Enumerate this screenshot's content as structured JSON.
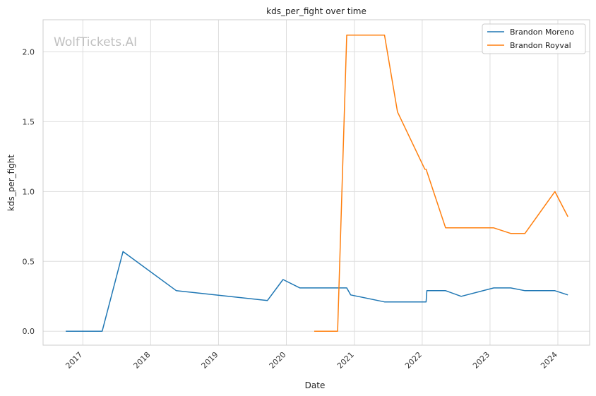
{
  "chart_data": {
    "type": "line",
    "title": "kds_per_fight over time",
    "xlabel": "Date",
    "ylabel": "kds_per_fight",
    "watermark": "WolfTickets.AI",
    "x_ticks": [
      "2017",
      "2018",
      "2019",
      "2020",
      "2021",
      "2022",
      "2023",
      "2024"
    ],
    "y_ticks": [
      "0.0",
      "0.5",
      "1.0",
      "1.5",
      "2.0"
    ],
    "xlim": [
      "2016-06-01",
      "2024-06-20"
    ],
    "ylim": [
      -0.1,
      2.23
    ],
    "grid": true,
    "legend_position": "top-right",
    "series": [
      {
        "name": "Brandon Moreno",
        "color": "#1f77b4",
        "points": [
          [
            "2016-10-01",
            0.0
          ],
          [
            "2017-04-15",
            0.0
          ],
          [
            "2017-08-05",
            0.57
          ],
          [
            "2018-05-19",
            0.29
          ],
          [
            "2019-09-21",
            0.22
          ],
          [
            "2019-12-14",
            0.37
          ],
          [
            "2020-03-14",
            0.31
          ],
          [
            "2020-11-21",
            0.31
          ],
          [
            "2020-12-12",
            0.26
          ],
          [
            "2021-06-12",
            0.21
          ],
          [
            "2022-01-22",
            0.21
          ],
          [
            "2022-01-26",
            0.29
          ],
          [
            "2022-05-07",
            0.29
          ],
          [
            "2022-07-30",
            0.25
          ],
          [
            "2023-01-21",
            0.31
          ],
          [
            "2023-04-22",
            0.31
          ],
          [
            "2023-07-08",
            0.29
          ],
          [
            "2023-12-16",
            0.29
          ],
          [
            "2024-02-24",
            0.26
          ]
        ]
      },
      {
        "name": "Brandon Royval",
        "color": "#ff7f0e",
        "points": [
          [
            "2020-05-30",
            0.0
          ],
          [
            "2020-10-03",
            0.0
          ],
          [
            "2020-11-21",
            2.12
          ],
          [
            "2021-06-12",
            2.12
          ],
          [
            "2021-08-21",
            1.57
          ],
          [
            "2022-01-15",
            1.16
          ],
          [
            "2022-01-22",
            1.16
          ],
          [
            "2022-05-07",
            0.74
          ],
          [
            "2023-01-21",
            0.74
          ],
          [
            "2023-04-22",
            0.7
          ],
          [
            "2023-07-08",
            0.7
          ],
          [
            "2023-12-16",
            1.0
          ],
          [
            "2024-02-24",
            0.82
          ]
        ]
      }
    ]
  }
}
